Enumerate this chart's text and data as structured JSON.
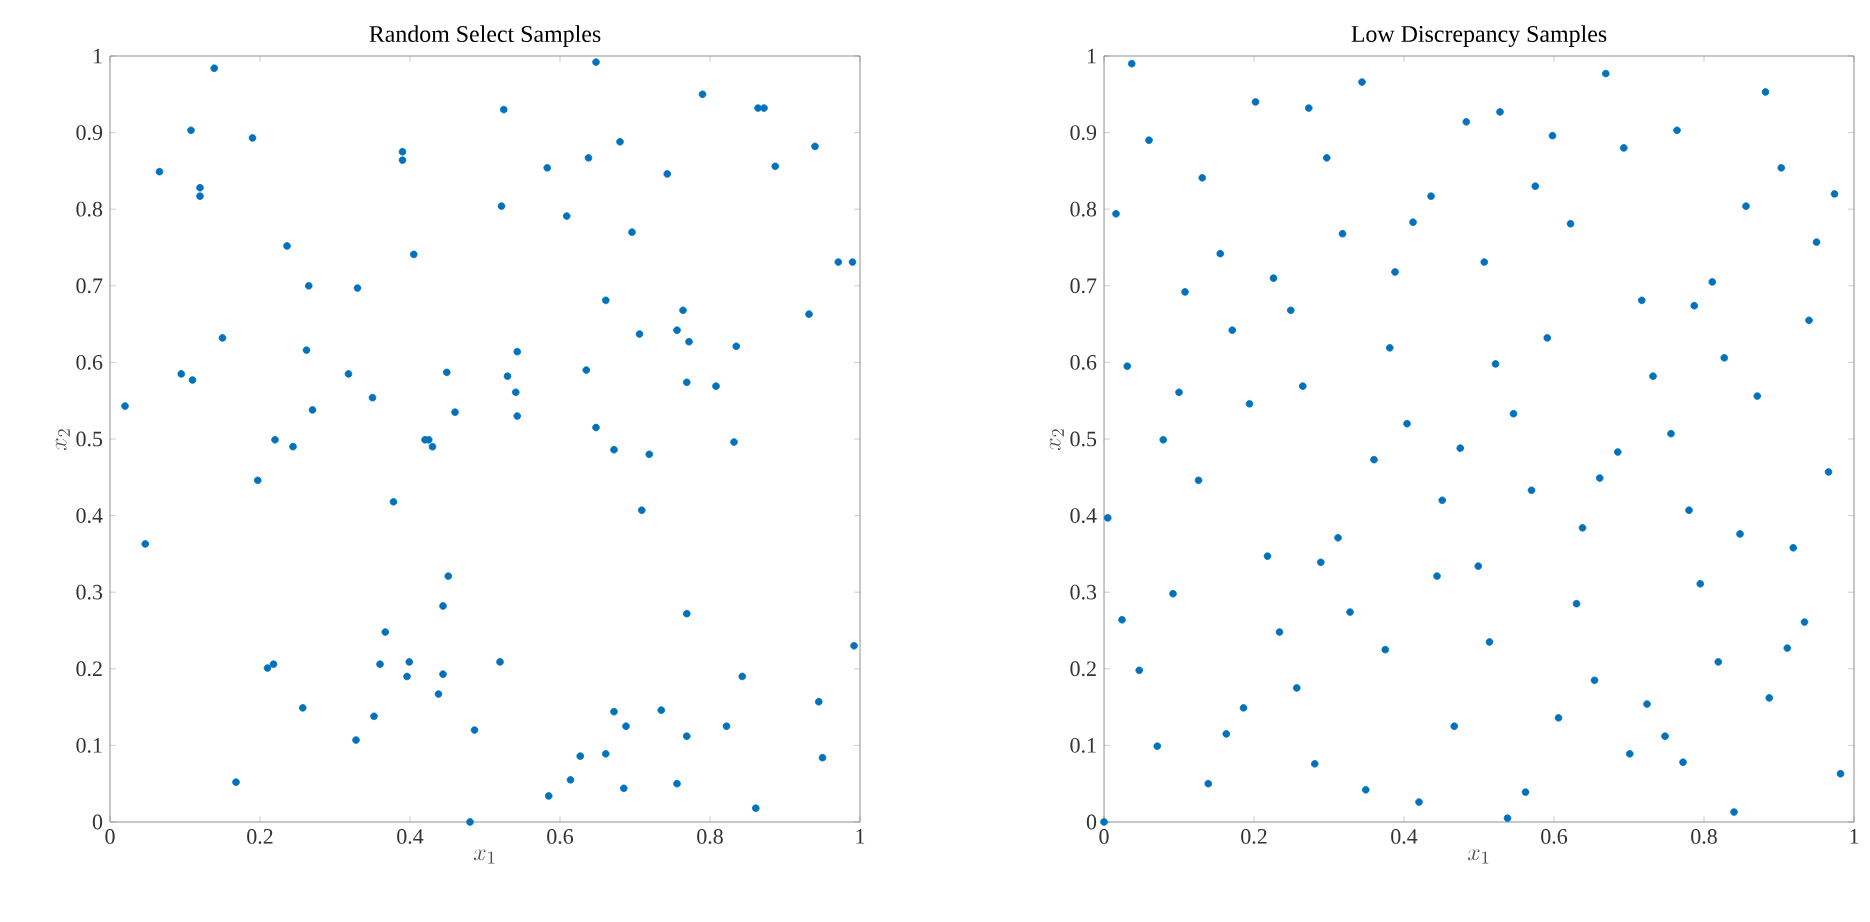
{
  "chart_data": [
    {
      "type": "scatter",
      "title": "Random Select Samples",
      "xlabel": "x_1",
      "ylabel": "x_2",
      "color": "#0072bd",
      "xlim": [
        0,
        1
      ],
      "ylim": [
        0,
        1
      ],
      "xticks": [
        0,
        0.2,
        0.4,
        0.6,
        0.8,
        1
      ],
      "yticks": [
        0,
        0.1,
        0.2,
        0.3,
        0.4,
        0.5,
        0.6,
        0.7,
        0.8,
        0.9,
        1
      ],
      "x": [
        0.139,
        0.971,
        0.99,
        0.02,
        0.066,
        0.108,
        0.12,
        0.12,
        0.19,
        0.236,
        0.265,
        0.33,
        0.15,
        0.262,
        0.095,
        0.11,
        0.27,
        0.318,
        0.35,
        0.39,
        0.39,
        0.405,
        0.449,
        0.46,
        0.525,
        0.522,
        0.53,
        0.541,
        0.543,
        0.543,
        0.583,
        0.609,
        0.648,
        0.638,
        0.635,
        0.648,
        0.661,
        0.68,
        0.696,
        0.706,
        0.743,
        0.756,
        0.764,
        0.772,
        0.769,
        0.808,
        0.79,
        0.835,
        0.864,
        0.872,
        0.887,
        0.94,
        0.932,
        0.22,
        0.244,
        0.197,
        0.047,
        0.378,
        0.42,
        0.425,
        0.43,
        0.672,
        0.719,
        0.709,
        0.832,
        0.451,
        0.444,
        0.769,
        0.367,
        0.992,
        0.21,
        0.218,
        0.36,
        0.399,
        0.396,
        0.444,
        0.52,
        0.438,
        0.843,
        0.257,
        0.352,
        0.328,
        0.486,
        0.672,
        0.688,
        0.735,
        0.769,
        0.822,
        0.945,
        0.95,
        0.168,
        0.585,
        0.614,
        0.627,
        0.661,
        0.685,
        0.756,
        0.861,
        0.48
      ],
      "values": [
        0.984,
        0.731,
        0.731,
        0.543,
        0.849,
        0.903,
        0.828,
        0.817,
        0.893,
        0.752,
        0.7,
        0.697,
        0.632,
        0.616,
        0.585,
        0.577,
        0.538,
        0.585,
        0.554,
        0.875,
        0.864,
        0.741,
        0.587,
        0.535,
        0.93,
        0.804,
        0.582,
        0.561,
        0.614,
        0.53,
        0.854,
        0.791,
        0.992,
        0.867,
        0.59,
        0.515,
        0.681,
        0.888,
        0.77,
        0.637,
        0.846,
        0.642,
        0.668,
        0.627,
        0.574,
        0.569,
        0.95,
        0.621,
        0.932,
        0.932,
        0.856,
        0.882,
        0.663,
        0.499,
        0.49,
        0.446,
        0.363,
        0.418,
        0.499,
        0.499,
        0.49,
        0.486,
        0.48,
        0.407,
        0.496,
        0.321,
        0.282,
        0.272,
        0.248,
        0.23,
        0.201,
        0.206,
        0.206,
        0.209,
        0.19,
        0.193,
        0.209,
        0.167,
        0.19,
        0.149,
        0.138,
        0.107,
        0.12,
        0.144,
        0.125,
        0.146,
        0.112,
        0.125,
        0.157,
        0.084,
        0.052,
        0.034,
        0.055,
        0.086,
        0.089,
        0.044,
        0.05,
        0.018,
        0.0
      ]
    },
    {
      "type": "scatter",
      "title": "Low Discrepancy Samples",
      "xlabel": "x_1",
      "ylabel": "x_2",
      "color": "#0072bd",
      "xlim": [
        0,
        1
      ],
      "ylim": [
        0,
        1
      ],
      "xticks": [
        0,
        0.2,
        0.4,
        0.6,
        0.8,
        1
      ],
      "yticks": [
        0,
        0.1,
        0.2,
        0.3,
        0.4,
        0.5,
        0.6,
        0.7,
        0.8,
        0.9,
        1
      ],
      "x": [
        0.037,
        0.06,
        0.016,
        0.031,
        0.131,
        0.202,
        0.273,
        0.344,
        0.297,
        0.108,
        0.155,
        0.171,
        0.1,
        0.079,
        0.194,
        0.226,
        0.249,
        0.265,
        0.318,
        0.388,
        0.381,
        0.412,
        0.436,
        0.404,
        0.483,
        0.528,
        0.507,
        0.522,
        0.546,
        0.575,
        0.598,
        0.591,
        0.622,
        0.669,
        0.693,
        0.717,
        0.732,
        0.764,
        0.787,
        0.811,
        0.827,
        0.756,
        0.856,
        0.871,
        0.882,
        0.903,
        0.94,
        0.95,
        0.974,
        0.005,
        0.0,
        0.024,
        0.047,
        0.071,
        0.092,
        0.126,
        0.139,
        0.163,
        0.186,
        0.218,
        0.234,
        0.257,
        0.281,
        0.289,
        0.312,
        0.328,
        0.349,
        0.36,
        0.375,
        0.42,
        0.444,
        0.451,
        0.467,
        0.475,
        0.499,
        0.514,
        0.538,
        0.562,
        0.57,
        0.606,
        0.63,
        0.638,
        0.654,
        0.661,
        0.685,
        0.701,
        0.724,
        0.748,
        0.772,
        0.78,
        0.795,
        0.819,
        0.84,
        0.848,
        0.887,
        0.911,
        0.919,
        0.934,
        0.966,
        0.982
      ],
      "values": [
        0.99,
        0.89,
        0.794,
        0.595,
        0.841,
        0.94,
        0.932,
        0.966,
        0.867,
        0.692,
        0.742,
        0.642,
        0.561,
        0.499,
        0.546,
        0.71,
        0.668,
        0.569,
        0.768,
        0.718,
        0.619,
        0.783,
        0.817,
        0.52,
        0.914,
        0.927,
        0.731,
        0.598,
        0.533,
        0.83,
        0.896,
        0.632,
        0.781,
        0.977,
        0.88,
        0.681,
        0.582,
        0.903,
        0.674,
        0.705,
        0.606,
        0.507,
        0.804,
        0.556,
        0.953,
        0.854,
        0.655,
        0.757,
        0.82,
        0.397,
        0.0,
        0.264,
        0.198,
        0.099,
        0.298,
        0.446,
        0.05,
        0.115,
        0.149,
        0.347,
        0.248,
        0.175,
        0.076,
        0.339,
        0.371,
        0.274,
        0.042,
        0.473,
        0.225,
        0.026,
        0.321,
        0.42,
        0.125,
        0.488,
        0.334,
        0.235,
        0.005,
        0.039,
        0.433,
        0.136,
        0.285,
        0.384,
        0.185,
        0.449,
        0.483,
        0.089,
        0.154,
        0.112,
        0.078,
        0.407,
        0.311,
        0.209,
        0.013,
        0.376,
        0.162,
        0.227,
        0.358,
        0.261,
        0.457,
        0.063
      ]
    }
  ]
}
